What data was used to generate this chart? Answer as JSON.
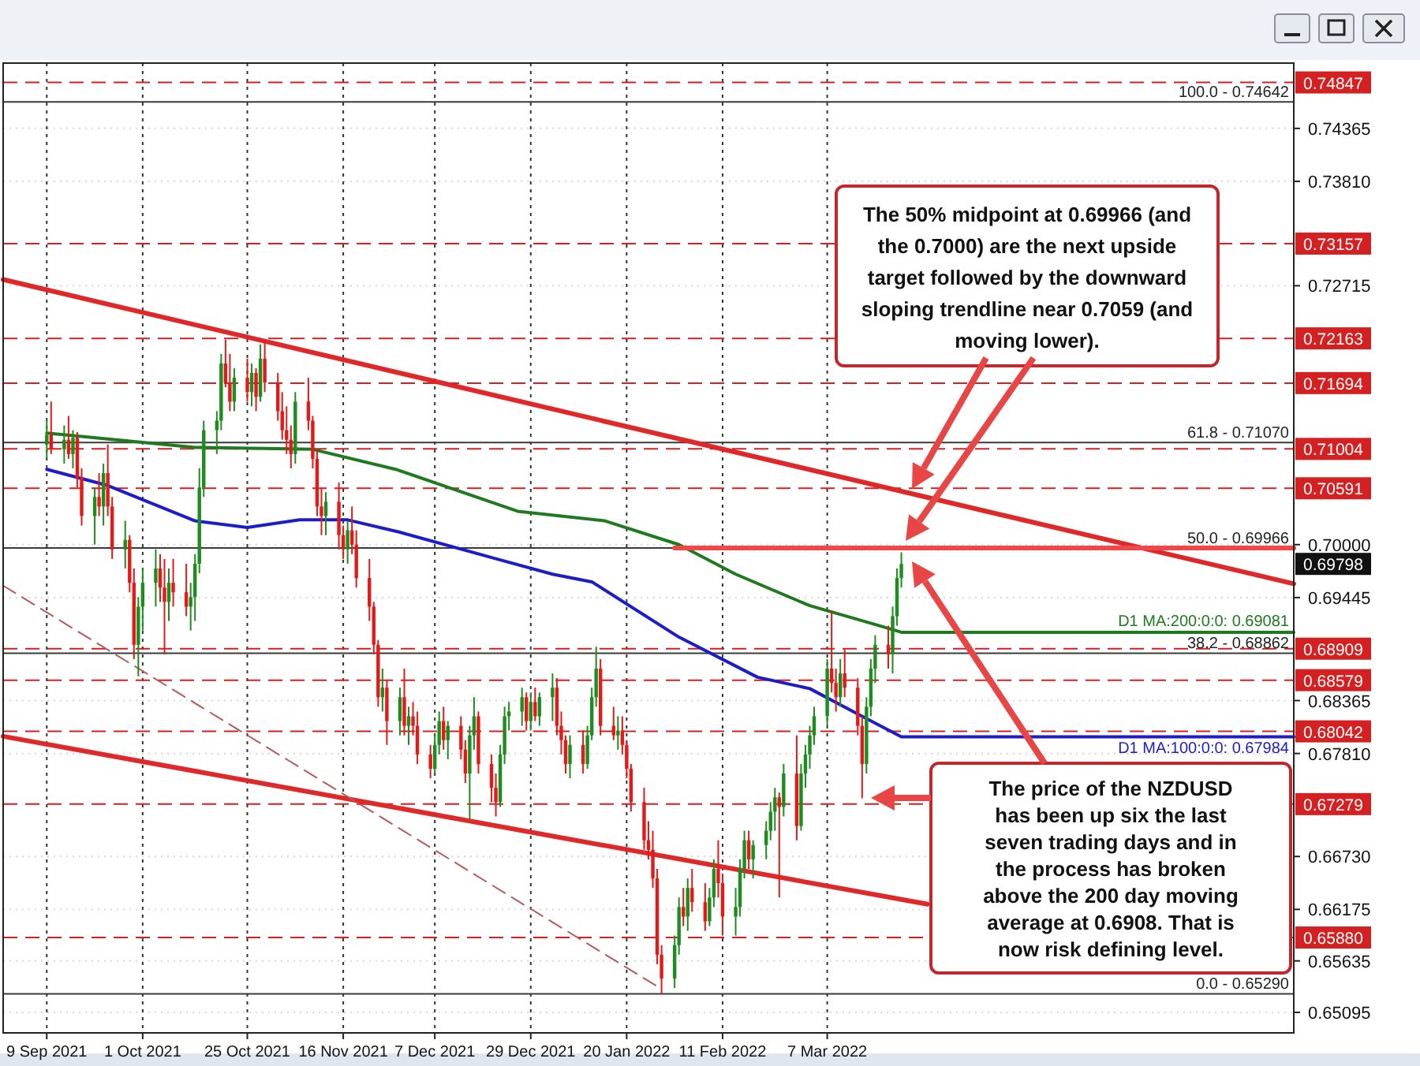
{
  "chart_data": {
    "type": "candlestick",
    "x": [
      "2021-09-09",
      "2021-09-10",
      "2021-09-13",
      "2021-09-14",
      "2021-09-15",
      "2021-09-16",
      "2021-09-17",
      "2021-09-20",
      "2021-09-21",
      "2021-09-22",
      "2021-09-23",
      "2021-09-24",
      "2021-09-27",
      "2021-09-28",
      "2021-09-29",
      "2021-09-30",
      "2021-10-01",
      "2021-10-04",
      "2021-10-05",
      "2021-10-06",
      "2021-10-07",
      "2021-10-08",
      "2021-10-11",
      "2021-10-12",
      "2021-10-13",
      "2021-10-14",
      "2021-10-15",
      "2021-10-18",
      "2021-10-19",
      "2021-10-20",
      "2021-10-21",
      "2021-10-22",
      "2021-10-25",
      "2021-10-26",
      "2021-10-27",
      "2021-10-28",
      "2021-10-29",
      "2021-11-01",
      "2021-11-02",
      "2021-11-03",
      "2021-11-04",
      "2021-11-05",
      "2021-11-08",
      "2021-11-09",
      "2021-11-10",
      "2021-11-11",
      "2021-11-12",
      "2021-11-15",
      "2021-11-16",
      "2021-11-17",
      "2021-11-18",
      "2021-11-19",
      "2021-11-22",
      "2021-11-23",
      "2021-11-24",
      "2021-11-25",
      "2021-11-26",
      "2021-11-29",
      "2021-11-30",
      "2021-12-01",
      "2021-12-02",
      "2021-12-03",
      "2021-12-06",
      "2021-12-07",
      "2021-12-08",
      "2021-12-09",
      "2021-12-10",
      "2021-12-13",
      "2021-12-14",
      "2021-12-15",
      "2021-12-16",
      "2021-12-17",
      "2021-12-20",
      "2021-12-21",
      "2021-12-22",
      "2021-12-23",
      "2021-12-24",
      "2021-12-27",
      "2021-12-28",
      "2021-12-29",
      "2021-12-30",
      "2021-12-31",
      "2022-01-03",
      "2022-01-04",
      "2022-01-05",
      "2022-01-06",
      "2022-01-07",
      "2022-01-10",
      "2022-01-11",
      "2022-01-12",
      "2022-01-13",
      "2022-01-14",
      "2022-01-17",
      "2022-01-18",
      "2022-01-19",
      "2022-01-20",
      "2022-01-21",
      "2022-01-24",
      "2022-01-25",
      "2022-01-26",
      "2022-01-27",
      "2022-01-28",
      "2022-01-31",
      "2022-02-01",
      "2022-02-02",
      "2022-02-03",
      "2022-02-04",
      "2022-02-07",
      "2022-02-08",
      "2022-02-09",
      "2022-02-10",
      "2022-02-11",
      "2022-02-14",
      "2022-02-15",
      "2022-02-16",
      "2022-02-17",
      "2022-02-18",
      "2022-02-21",
      "2022-02-22",
      "2022-02-23",
      "2022-02-24",
      "2022-02-25",
      "2022-02-28",
      "2022-03-01",
      "2022-03-02",
      "2022-03-03",
      "2022-03-04",
      "2022-03-07",
      "2022-03-08",
      "2022-03-09",
      "2022-03-10",
      "2022-03-11",
      "2022-03-14",
      "2022-03-15",
      "2022-03-16",
      "2022-03-17",
      "2022-03-18",
      "2022-03-21",
      "2022-03-22",
      "2022-03-23",
      "2022-03-24"
    ],
    "ohlc": [
      [
        0.7105,
        0.713,
        0.709,
        0.7115
      ],
      [
        0.7115,
        0.715,
        0.7095,
        0.71
      ],
      [
        0.71,
        0.7125,
        0.7085,
        0.711
      ],
      [
        0.711,
        0.7135,
        0.709,
        0.7095
      ],
      [
        0.7095,
        0.712,
        0.708,
        0.7112
      ],
      [
        0.7112,
        0.7118,
        0.706,
        0.707
      ],
      [
        0.707,
        0.708,
        0.702,
        0.703
      ],
      [
        0.703,
        0.706,
        0.7,
        0.705
      ],
      [
        0.705,
        0.7075,
        0.703,
        0.704
      ],
      [
        0.704,
        0.7085,
        0.702,
        0.7075
      ],
      [
        0.7075,
        0.7105,
        0.703,
        0.704
      ],
      [
        0.704,
        0.705,
        0.6985,
        0.6995
      ],
      [
        0.6995,
        0.7025,
        0.6975,
        0.7005
      ],
      [
        0.7005,
        0.701,
        0.695,
        0.696
      ],
      [
        0.696,
        0.6975,
        0.688,
        0.6895
      ],
      [
        0.6895,
        0.6945,
        0.6862,
        0.6935
      ],
      [
        0.6935,
        0.6975,
        0.691,
        0.696
      ],
      [
        0.696,
        0.6995,
        0.6935,
        0.6975
      ],
      [
        0.6975,
        0.699,
        0.694,
        0.6955
      ],
      [
        0.6955,
        0.6985,
        0.6885,
        0.694
      ],
      [
        0.694,
        0.6975,
        0.692,
        0.696
      ],
      [
        0.696,
        0.6985,
        0.6935,
        0.695
      ],
      [
        0.695,
        0.698,
        0.6925,
        0.6935
      ],
      [
        0.6935,
        0.696,
        0.691,
        0.6945
      ],
      [
        0.6945,
        0.699,
        0.692,
        0.698
      ],
      [
        0.698,
        0.708,
        0.697,
        0.706
      ],
      [
        0.706,
        0.713,
        0.705,
        0.712
      ],
      [
        0.712,
        0.714,
        0.7095,
        0.713
      ],
      [
        0.713,
        0.72,
        0.712,
        0.719
      ],
      [
        0.719,
        0.7215,
        0.7165,
        0.717
      ],
      [
        0.717,
        0.72,
        0.714,
        0.715
      ],
      [
        0.715,
        0.7185,
        0.714,
        0.7175
      ],
      [
        0.7175,
        0.7195,
        0.715,
        0.716
      ],
      [
        0.716,
        0.719,
        0.7145,
        0.718
      ],
      [
        0.718,
        0.7185,
        0.714,
        0.7155
      ],
      [
        0.7155,
        0.721,
        0.715,
        0.7195
      ],
      [
        0.7195,
        0.7215,
        0.716,
        0.717
      ],
      [
        0.717,
        0.718,
        0.713,
        0.714
      ],
      [
        0.714,
        0.716,
        0.711,
        0.712
      ],
      [
        0.712,
        0.7145,
        0.7095,
        0.711
      ],
      [
        0.711,
        0.7125,
        0.708,
        0.7095
      ],
      [
        0.7095,
        0.716,
        0.7085,
        0.715
      ],
      [
        0.715,
        0.7175,
        0.712,
        0.713
      ],
      [
        0.713,
        0.7135,
        0.708,
        0.709
      ],
      [
        0.709,
        0.71,
        0.703,
        0.704
      ],
      [
        0.704,
        0.706,
        0.701,
        0.703
      ],
      [
        0.703,
        0.7055,
        0.701,
        0.7045
      ],
      [
        0.7045,
        0.7065,
        0.6995,
        0.701
      ],
      [
        0.701,
        0.702,
        0.6985,
        0.6995
      ],
      [
        0.6995,
        0.7025,
        0.698,
        0.7015
      ],
      [
        0.7015,
        0.704,
        0.699,
        0.7
      ],
      [
        0.7,
        0.7015,
        0.6955,
        0.6965
      ],
      [
        0.6965,
        0.6985,
        0.692,
        0.6935
      ],
      [
        0.6935,
        0.694,
        0.6885,
        0.6895
      ],
      [
        0.6895,
        0.69,
        0.683,
        0.684
      ],
      [
        0.684,
        0.687,
        0.6825,
        0.685
      ],
      [
        0.685,
        0.6858,
        0.679,
        0.6815
      ],
      [
        0.6815,
        0.685,
        0.68,
        0.684
      ],
      [
        0.684,
        0.687,
        0.68,
        0.681
      ],
      [
        0.681,
        0.683,
        0.679,
        0.682
      ],
      [
        0.682,
        0.6835,
        0.68,
        0.681
      ],
      [
        0.681,
        0.6825,
        0.677,
        0.678
      ],
      [
        0.678,
        0.679,
        0.6755,
        0.6765
      ],
      [
        0.6765,
        0.68,
        0.676,
        0.679
      ],
      [
        0.679,
        0.6825,
        0.678,
        0.6815
      ],
      [
        0.6815,
        0.683,
        0.6785,
        0.6795
      ],
      [
        0.6795,
        0.6815,
        0.6775,
        0.681
      ],
      [
        0.681,
        0.682,
        0.6775,
        0.6785
      ],
      [
        0.6785,
        0.6795,
        0.675,
        0.676
      ],
      [
        0.676,
        0.681,
        0.6712,
        0.68
      ],
      [
        0.68,
        0.684,
        0.6785,
        0.682
      ],
      [
        0.682,
        0.6825,
        0.676,
        0.677
      ],
      [
        0.677,
        0.678,
        0.673,
        0.6745
      ],
      [
        0.6745,
        0.676,
        0.6715,
        0.673
      ],
      [
        0.673,
        0.679,
        0.6725,
        0.678
      ],
      [
        0.678,
        0.683,
        0.677,
        0.682
      ],
      [
        0.682,
        0.6835,
        0.6805,
        0.6825
      ],
      [
        0.6825,
        0.685,
        0.681,
        0.684
      ],
      [
        0.684,
        0.6845,
        0.6805,
        0.6815
      ],
      [
        0.6815,
        0.6845,
        0.6805,
        0.6835
      ],
      [
        0.6835,
        0.685,
        0.6815,
        0.682
      ],
      [
        0.682,
        0.6845,
        0.681,
        0.684
      ],
      [
        0.684,
        0.6865,
        0.6815,
        0.685
      ],
      [
        0.685,
        0.686,
        0.68,
        0.681
      ],
      [
        0.681,
        0.6825,
        0.678,
        0.6795
      ],
      [
        0.6795,
        0.68,
        0.676,
        0.677
      ],
      [
        0.677,
        0.68,
        0.6755,
        0.679
      ],
      [
        0.679,
        0.6805,
        0.676,
        0.677
      ],
      [
        0.677,
        0.681,
        0.6765,
        0.68
      ],
      [
        0.68,
        0.685,
        0.6795,
        0.684
      ],
      [
        0.684,
        0.6893,
        0.683,
        0.687
      ],
      [
        0.687,
        0.688,
        0.68,
        0.681
      ],
      [
        0.681,
        0.683,
        0.6795,
        0.68
      ],
      [
        0.68,
        0.682,
        0.6785,
        0.6805
      ],
      [
        0.6805,
        0.682,
        0.678,
        0.679
      ],
      [
        0.679,
        0.6795,
        0.6755,
        0.6765
      ],
      [
        0.6765,
        0.677,
        0.672,
        0.673
      ],
      [
        0.673,
        0.6745,
        0.668,
        0.669
      ],
      [
        0.669,
        0.671,
        0.667,
        0.668
      ],
      [
        0.668,
        0.67,
        0.664,
        0.665
      ],
      [
        0.665,
        0.666,
        0.656,
        0.657
      ],
      [
        0.657,
        0.658,
        0.6529,
        0.6545
      ],
      [
        0.6545,
        0.659,
        0.6535,
        0.658
      ],
      [
        0.658,
        0.663,
        0.657,
        0.662
      ],
      [
        0.662,
        0.664,
        0.66,
        0.661
      ],
      [
        0.661,
        0.665,
        0.6595,
        0.664
      ],
      [
        0.664,
        0.666,
        0.6615,
        0.6625
      ],
      [
        0.6625,
        0.6645,
        0.6595,
        0.6605
      ],
      [
        0.6605,
        0.664,
        0.66,
        0.663
      ],
      [
        0.663,
        0.667,
        0.662,
        0.666
      ],
      [
        0.666,
        0.669,
        0.663,
        0.6645
      ],
      [
        0.6645,
        0.6655,
        0.659,
        0.661
      ],
      [
        0.661,
        0.664,
        0.659,
        0.662
      ],
      [
        0.662,
        0.667,
        0.661,
        0.666
      ],
      [
        0.666,
        0.67,
        0.665,
        0.669
      ],
      [
        0.669,
        0.67,
        0.666,
        0.667
      ],
      [
        0.667,
        0.669,
        0.665,
        0.6685
      ],
      [
        0.6685,
        0.671,
        0.667,
        0.67
      ],
      [
        0.67,
        0.673,
        0.669,
        0.672
      ],
      [
        0.672,
        0.6745,
        0.67,
        0.6735
      ],
      [
        0.6735,
        0.674,
        0.663,
        0.6725
      ],
      [
        0.6725,
        0.677,
        0.6715,
        0.676
      ],
      [
        0.676,
        0.68,
        0.669,
        0.6705
      ],
      [
        0.6705,
        0.677,
        0.67,
        0.676
      ],
      [
        0.676,
        0.679,
        0.6745,
        0.678
      ],
      [
        0.678,
        0.681,
        0.6765,
        0.68
      ],
      [
        0.68,
        0.683,
        0.679,
        0.682
      ],
      [
        0.682,
        0.688,
        0.681,
        0.687
      ],
      [
        0.687,
        0.6931,
        0.6845,
        0.6855
      ],
      [
        0.6855,
        0.687,
        0.6825,
        0.684
      ],
      [
        0.684,
        0.688,
        0.683,
        0.6865
      ],
      [
        0.6865,
        0.689,
        0.684,
        0.685
      ],
      [
        0.685,
        0.686,
        0.68,
        0.681
      ],
      [
        0.681,
        0.682,
        0.6734,
        0.677
      ],
      [
        0.677,
        0.684,
        0.676,
        0.683
      ],
      [
        0.683,
        0.688,
        0.682,
        0.687
      ],
      [
        0.687,
        0.6905,
        0.6855,
        0.6895
      ],
      [
        0.6895,
        0.6915,
        0.687,
        0.6885
      ],
      [
        0.6885,
        0.6935,
        0.6865,
        0.6925
      ],
      [
        0.6925,
        0.6975,
        0.6915,
        0.6965
      ],
      [
        0.6965,
        0.6992,
        0.6955,
        0.69798
      ]
    ],
    "series": [
      {
        "type": "line",
        "name": "D1 MA:200:0:0: 0.69081",
        "color": "#1f7a1f",
        "x": [
          "2021-09-09",
          "2021-10-13",
          "2021-11-09",
          "2021-11-28",
          "2021-12-26",
          "2022-01-15",
          "2022-02-01",
          "2022-02-14",
          "2022-03-03",
          "2022-03-19",
          "2022-03-24",
          "2022-06-22"
        ],
        "values": [
          0.7117,
          0.7102,
          0.71,
          0.7079,
          0.7035,
          0.7025,
          0.7,
          0.6969,
          0.6936,
          0.6915,
          0.69081,
          0.69081
        ]
      },
      {
        "type": "line",
        "name": "D1 MA:100:0:0: 0.67984",
        "color": "#1c1cc8",
        "x": [
          "2021-09-09",
          "2021-09-23",
          "2021-10-13",
          "2021-10-25",
          "2021-11-06",
          "2021-11-17",
          "2021-11-29",
          "2021-12-22",
          "2022-01-03",
          "2022-01-12",
          "2022-02-01",
          "2022-02-19",
          "2022-03-03",
          "2022-03-15",
          "2022-03-24",
          "2022-06-22"
        ],
        "values": [
          0.7079,
          0.7062,
          0.7025,
          0.7018,
          0.7026,
          0.7026,
          0.7013,
          0.6984,
          0.6969,
          0.6961,
          0.6903,
          0.6861,
          0.6849,
          0.682,
          0.67984,
          0.67984
        ]
      },
      {
        "type": "line",
        "color": "#e02828",
        "x": [
          "2021-08-30",
          "2022-06-22"
        ],
        "values": [
          0.7278,
          0.6959
        ]
      },
      {
        "type": "line",
        "color": "#e02828",
        "x": [
          "2021-08-30",
          "2022-03-30"
        ],
        "values": [
          0.6799,
          0.6623
        ]
      },
      {
        "type": "line",
        "color": "#b85a5a",
        "line_style": "dashed",
        "x": [
          "2021-08-30",
          "2022-01-28"
        ],
        "values": [
          0.6957,
          0.6534
        ]
      },
      {
        "type": "line",
        "color": "#f04848",
        "x": [
          "2022-01-31",
          "2022-06-22"
        ],
        "values": [
          0.69966,
          0.69966
        ]
      }
    ],
    "xlim": [
      "2021-08-30",
      "2022-06-22"
    ],
    "xticks": [
      {
        "value": "2021-09-09",
        "label": "9 Sep 2021"
      },
      {
        "value": "2021-10-01",
        "label": "1 Oct 2021"
      },
      {
        "value": "2021-10-25",
        "label": "25 Oct 2021"
      },
      {
        "value": "2021-11-16",
        "label": "16 Nov 2021"
      },
      {
        "value": "2021-12-07",
        "label": "7 Dec 2021"
      },
      {
        "value": "2021-12-29",
        "label": "29 Dec 2021"
      },
      {
        "value": "2022-01-20",
        "label": "20 Jan 2022"
      },
      {
        "value": "2022-02-11",
        "label": "11 Feb 2022"
      },
      {
        "value": "2022-03-07",
        "label": "7 Mar 2022"
      }
    ],
    "ylim": [
      0.6488,
      0.7505
    ],
    "yticks": [
      0.74365,
      {
        "value": 0.7381,
        "label": "0.73810"
      },
      0.72715,
      {
        "value": 0.7,
        "label": "0.70000"
      },
      0.69445,
      0.68365,
      {
        "value": 0.6781,
        "label": "0.67810"
      },
      {
        "value": 0.6673,
        "label": "0.66730"
      },
      0.66175,
      0.65635,
      0.65095
    ],
    "grid": true,
    "ref_lines": [
      {
        "axis": "y",
        "value": 0.74642,
        "color": "#3a3a3a"
      },
      {
        "axis": "y",
        "value": 0.7107,
        "color": "#3a3a3a"
      },
      {
        "axis": "y",
        "value": 0.69966,
        "color": "#3a3a3a"
      },
      {
        "axis": "y",
        "value": 0.68862,
        "color": "#3a3a3a"
      },
      {
        "axis": "y",
        "value": 0.6529,
        "color": "#3a3a3a"
      },
      {
        "axis": "y",
        "value": 0.74847,
        "label": "0.74847",
        "color": "#d42020",
        "line_style": "dashed"
      },
      {
        "axis": "y",
        "value": 0.73157,
        "label": "0.73157",
        "color": "#d42020",
        "line_style": "dashed"
      },
      {
        "axis": "y",
        "value": 0.72163,
        "label": "0.72163",
        "color": "#d42020",
        "line_style": "dashed"
      },
      {
        "axis": "y",
        "value": 0.71694,
        "label": "0.71694",
        "color": "#d42020",
        "line_style": "dashed"
      },
      {
        "axis": "y",
        "value": 0.71004,
        "label": "0.71004",
        "color": "#d42020",
        "line_style": "dashed"
      },
      {
        "axis": "y",
        "value": 0.70591,
        "label": "0.70591",
        "color": "#d42020",
        "line_style": "dashed"
      },
      {
        "axis": "y",
        "value": 0.68909,
        "label": "0.68909",
        "color": "#d42020",
        "line_style": "dashed"
      },
      {
        "axis": "y",
        "value": 0.68579,
        "label": "0.68579",
        "color": "#d42020",
        "line_style": "dashed"
      },
      {
        "axis": "y",
        "value": 0.68042,
        "label": "0.68042",
        "color": "#d42020",
        "line_style": "dashed"
      },
      {
        "axis": "y",
        "value": 0.67279,
        "label": "0.67279",
        "color": "#d42020",
        "line_style": "dashed"
      },
      {
        "axis": "y",
        "value": 0.6588,
        "label": "0.65880",
        "color": "#d42020",
        "line_style": "dashed"
      }
    ],
    "annotations": [
      "The 50% midpoint at 0.69966 (and the 0.7000) are the next upside target followed by the downward sloping trendline near 0.7059 (and moving lower).",
      "The price of the NZDUSD has been up six the last seven trading days and in the process has broken above the 200 day moving average at 0.6908. That is now risk defining level.",
      "0.69798",
      {
        "text": "100.0 - 0.74642",
        "y": 0.74642
      },
      {
        "text": "61.8 - 0.71070",
        "y": 0.7107
      },
      {
        "text": "50.0 - 0.69966",
        "y": 0.69966
      },
      {
        "text": "38.2 - 0.68862",
        "y": 0.68862
      },
      {
        "text": "0.0 - 0.65290",
        "y": 0.6529
      }
    ]
  }
}
